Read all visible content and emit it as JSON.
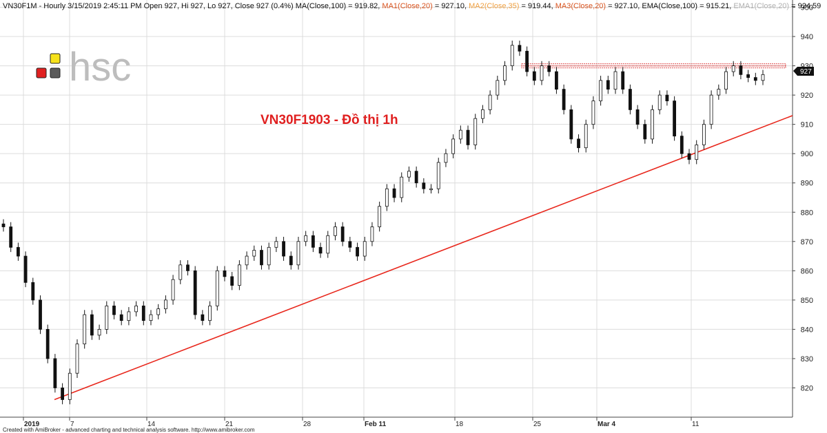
{
  "chart_data": {
    "type": "candlestick",
    "title": "VN30F1903 - Đồ thị 1h",
    "ylim": [
      810,
      952
    ],
    "y_ticks": [
      820,
      830,
      840,
      850,
      860,
      870,
      880,
      890,
      900,
      910,
      920,
      930,
      940,
      950
    ],
    "x_labels": [
      "2019",
      "7",
      "14",
      "21",
      "28",
      "Feb 11",
      "18",
      "25",
      "Mar 4",
      "11"
    ],
    "last_price": "927",
    "header": {
      "part1": "VN30F1M - Hourly 3/15/2019 2:45:11 PM Open 927, Hi 927, Lo 927, Close 927 (0.4%) MA(Close,100) = 919.82, ",
      "ma1": "MA1(Close,20)",
      "ma1_val": " = 927.10, ",
      "ma2": "MA2(Close,35)",
      "ma2_val": " = 919.44, ",
      "ma3": "MA3(Close,20)",
      "ma3_val": " = 927.10, EMA(Close,100) = 915.21, ",
      "ema1": "EMA1(Close,20)",
      "ema1_val": " = 924.59"
    },
    "resistance_level": 930,
    "trendline": {
      "from": {
        "index": 0,
        "price": 816
      },
      "to": {
        "index": 1,
        "price": 913
      }
    },
    "footer": "Created with AmiBroker - advanced charting and technical analysis software. http://www.amibroker.com",
    "closes": [
      875,
      868,
      865,
      856,
      850,
      840,
      830,
      820,
      816,
      825,
      835,
      845,
      838,
      840,
      848,
      845,
      843,
      846,
      848,
      843,
      845,
      847,
      850,
      857,
      862,
      860,
      845,
      843,
      848,
      860,
      858,
      855,
      862,
      865,
      867,
      862,
      868,
      870,
      865,
      862,
      870,
      872,
      868,
      866,
      872,
      875,
      870,
      868,
      865,
      870,
      875,
      882,
      888,
      885,
      892,
      894,
      890,
      888,
      888,
      897,
      900,
      905,
      908,
      903,
      912,
      915,
      920,
      925,
      930,
      937,
      935,
      928,
      925,
      930,
      928,
      922,
      915,
      905,
      902,
      910,
      918,
      925,
      922,
      928,
      922,
      915,
      910,
      905,
      915,
      920,
      918,
      906,
      900,
      898,
      903,
      910,
      920,
      922,
      928,
      930,
      927,
      926,
      925,
      927
    ],
    "colors": {
      "trendline": "#e8271c",
      "title": "#e01f1f",
      "resistance": "#e05050",
      "logo_red": "#e02020",
      "logo_yellow": "#f6e21a",
      "logo_gray": "#5a5a5a",
      "logo_text": "#bdbdbd",
      "ma1": "#d9531e",
      "ma2": "#f0a040",
      "ma3": "#d9531e",
      "ema1": "#b0b0b0"
    }
  },
  "logo": {
    "text": "hsc"
  }
}
